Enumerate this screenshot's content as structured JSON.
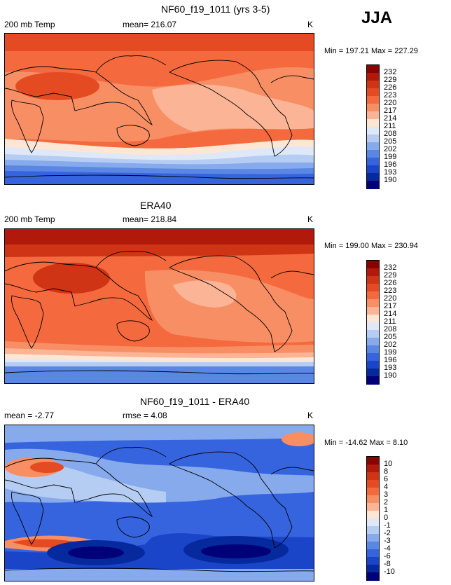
{
  "season": "JJA",
  "panels": [
    {
      "title": "NF60_f19_1011 (yrs 3-5)",
      "left_label": "200 mb Temp",
      "center_label": "mean= 216.07",
      "units": "K",
      "minmax": "Min = 197.21 Max = 227.29",
      "colorbar": {
        "levels": [
          "232",
          "229",
          "226",
          "223",
          "220",
          "217",
          "214",
          "211",
          "208",
          "205",
          "202",
          "199",
          "196",
          "193",
          "190"
        ],
        "colors": [
          "#8b0000",
          "#b11a0a",
          "#cf3414",
          "#e54b22",
          "#f46a3e",
          "#f88f64",
          "#fbb596",
          "#fde6d4",
          "#dfe8f8",
          "#b5cdf3",
          "#86aaeb",
          "#5a86e4",
          "#3564de",
          "#1a45c8",
          "#062a9e",
          "#000078"
        ]
      }
    },
    {
      "title": "ERA40",
      "left_label": "200 mb Temp",
      "center_label": "mean= 218.84",
      "units": "K",
      "minmax": "Min = 199.00 Max = 230.94",
      "colorbar": {
        "levels": [
          "232",
          "229",
          "226",
          "223",
          "220",
          "217",
          "214",
          "211",
          "208",
          "205",
          "202",
          "199",
          "196",
          "193",
          "190"
        ],
        "colors": [
          "#8b0000",
          "#b11a0a",
          "#cf3414",
          "#e54b22",
          "#f46a3e",
          "#f88f64",
          "#fbb596",
          "#fde6d4",
          "#dfe8f8",
          "#b5cdf3",
          "#86aaeb",
          "#5a86e4",
          "#3564de",
          "#1a45c8",
          "#062a9e",
          "#000078"
        ]
      }
    },
    {
      "title": "NF60_f19_1011 - ERA40",
      "left_label": "mean =  -2.77",
      "center_label": "rmse =   4.08",
      "units": "K",
      "minmax": "Min = -14.62 Max =   8.10",
      "colorbar": {
        "levels": [
          "10",
          "8",
          "6",
          "4",
          "3",
          "2",
          "1",
          "0",
          "-1",
          "-2",
          "-3",
          "-4",
          "-6",
          "-8",
          "-10"
        ],
        "colors": [
          "#8b0000",
          "#b11a0a",
          "#cf3414",
          "#e54b22",
          "#f46a3e",
          "#f88f64",
          "#fbb596",
          "#fde6d4",
          "#dfe8f8",
          "#b5cdf3",
          "#86aaeb",
          "#5a86e4",
          "#3564de",
          "#1a45c8",
          "#062a9e",
          "#000078"
        ]
      }
    }
  ]
}
